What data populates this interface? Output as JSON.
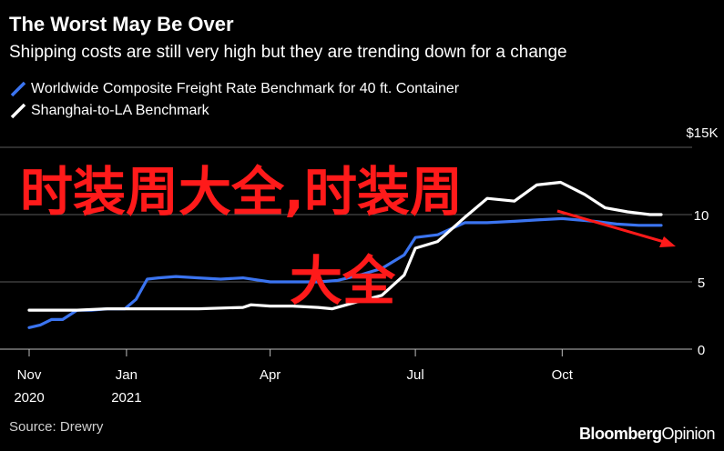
{
  "header": {
    "title": "The Worst May Be Over",
    "subtitle": "Shipping costs are still very high but they are trending down for a change"
  },
  "legend": [
    {
      "label": "Worldwide Composite Freight Rate Benchmark for 40 ft. Container",
      "color": "#3b74f0"
    },
    {
      "label": "Shanghai-to-LA Benchmark",
      "color": "#ffffff"
    }
  ],
  "footer": {
    "source": "Source: Drewry",
    "brand_part1": "Bloomberg",
    "brand_part2": "Opinion"
  },
  "watermark": {
    "line1": "时装周大全,时装周",
    "line2": "大全"
  },
  "chart_data": {
    "type": "line",
    "y_unit": "$15K",
    "ylim": [
      0,
      15
    ],
    "yticks": [
      0,
      5,
      10
    ],
    "ytick_labels": [
      "0",
      "5",
      "10"
    ],
    "grid": true,
    "legend_position": "top-left",
    "x_ticks": [
      {
        "date": "2020-11-01",
        "label_top": "Nov",
        "label_bottom": "2020"
      },
      {
        "date": "2021-01-01",
        "label_top": "Jan",
        "label_bottom": "2021"
      },
      {
        "date": "2021-04-01",
        "label_top": "Apr",
        "label_bottom": ""
      },
      {
        "date": "2021-07-01",
        "label_top": "Jul",
        "label_bottom": ""
      },
      {
        "date": "2021-10-01",
        "label_top": "Oct",
        "label_bottom": ""
      }
    ],
    "xlim": [
      "2020-11-01",
      "2021-12-10"
    ],
    "series": [
      {
        "name": "Worldwide Composite Freight Rate Benchmark for 40 ft. Container",
        "color": "#3b74f0",
        "points": [
          [
            "2020-11-01",
            1.6
          ],
          [
            "2020-11-08",
            1.8
          ],
          [
            "2020-11-15",
            2.2
          ],
          [
            "2020-11-22",
            2.2
          ],
          [
            "2020-12-01",
            2.9
          ],
          [
            "2020-12-10",
            2.9
          ],
          [
            "2020-12-20",
            3.0
          ],
          [
            "2020-12-31",
            3.0
          ],
          [
            "2021-01-07",
            3.7
          ],
          [
            "2021-01-14",
            5.2
          ],
          [
            "2021-01-21",
            5.3
          ],
          [
            "2021-02-01",
            5.4
          ],
          [
            "2021-02-15",
            5.3
          ],
          [
            "2021-03-01",
            5.2
          ],
          [
            "2021-03-15",
            5.3
          ],
          [
            "2021-04-01",
            5.0
          ],
          [
            "2021-04-15",
            5.0
          ],
          [
            "2021-05-01",
            5.0
          ],
          [
            "2021-05-13",
            5.1
          ],
          [
            "2021-05-27",
            5.5
          ],
          [
            "2021-06-10",
            6.0
          ],
          [
            "2021-06-24",
            7.0
          ],
          [
            "2021-07-01",
            8.3
          ],
          [
            "2021-07-15",
            8.5
          ],
          [
            "2021-08-01",
            9.4
          ],
          [
            "2021-08-15",
            9.4
          ],
          [
            "2021-09-01",
            9.5
          ],
          [
            "2021-09-15",
            9.6
          ],
          [
            "2021-10-01",
            9.7
          ],
          [
            "2021-10-21",
            9.5
          ],
          [
            "2021-11-04",
            9.3
          ],
          [
            "2021-11-18",
            9.2
          ],
          [
            "2021-12-02",
            9.2
          ]
        ]
      },
      {
        "name": "Shanghai-to-LA Benchmark",
        "color": "#ffffff",
        "points": [
          [
            "2020-11-01",
            2.9
          ],
          [
            "2020-12-01",
            2.9
          ],
          [
            "2020-12-20",
            3.0
          ],
          [
            "2021-01-15",
            3.0
          ],
          [
            "2021-02-15",
            3.0
          ],
          [
            "2021-03-15",
            3.1
          ],
          [
            "2021-03-20",
            3.3
          ],
          [
            "2021-04-01",
            3.2
          ],
          [
            "2021-04-15",
            3.2
          ],
          [
            "2021-05-01",
            3.1
          ],
          [
            "2021-05-10",
            3.0
          ],
          [
            "2021-05-25",
            3.5
          ],
          [
            "2021-06-10",
            4.0
          ],
          [
            "2021-06-24",
            5.5
          ],
          [
            "2021-07-01",
            7.5
          ],
          [
            "2021-07-15",
            8.0
          ],
          [
            "2021-08-01",
            9.8
          ],
          [
            "2021-08-15",
            11.2
          ],
          [
            "2021-09-01",
            11.0
          ],
          [
            "2021-09-15",
            12.2
          ],
          [
            "2021-09-30",
            12.4
          ],
          [
            "2021-10-15",
            11.5
          ],
          [
            "2021-10-28",
            10.5
          ],
          [
            "2021-11-11",
            10.2
          ],
          [
            "2021-11-25",
            10.0
          ],
          [
            "2021-12-02",
            10.0
          ]
        ]
      }
    ]
  }
}
